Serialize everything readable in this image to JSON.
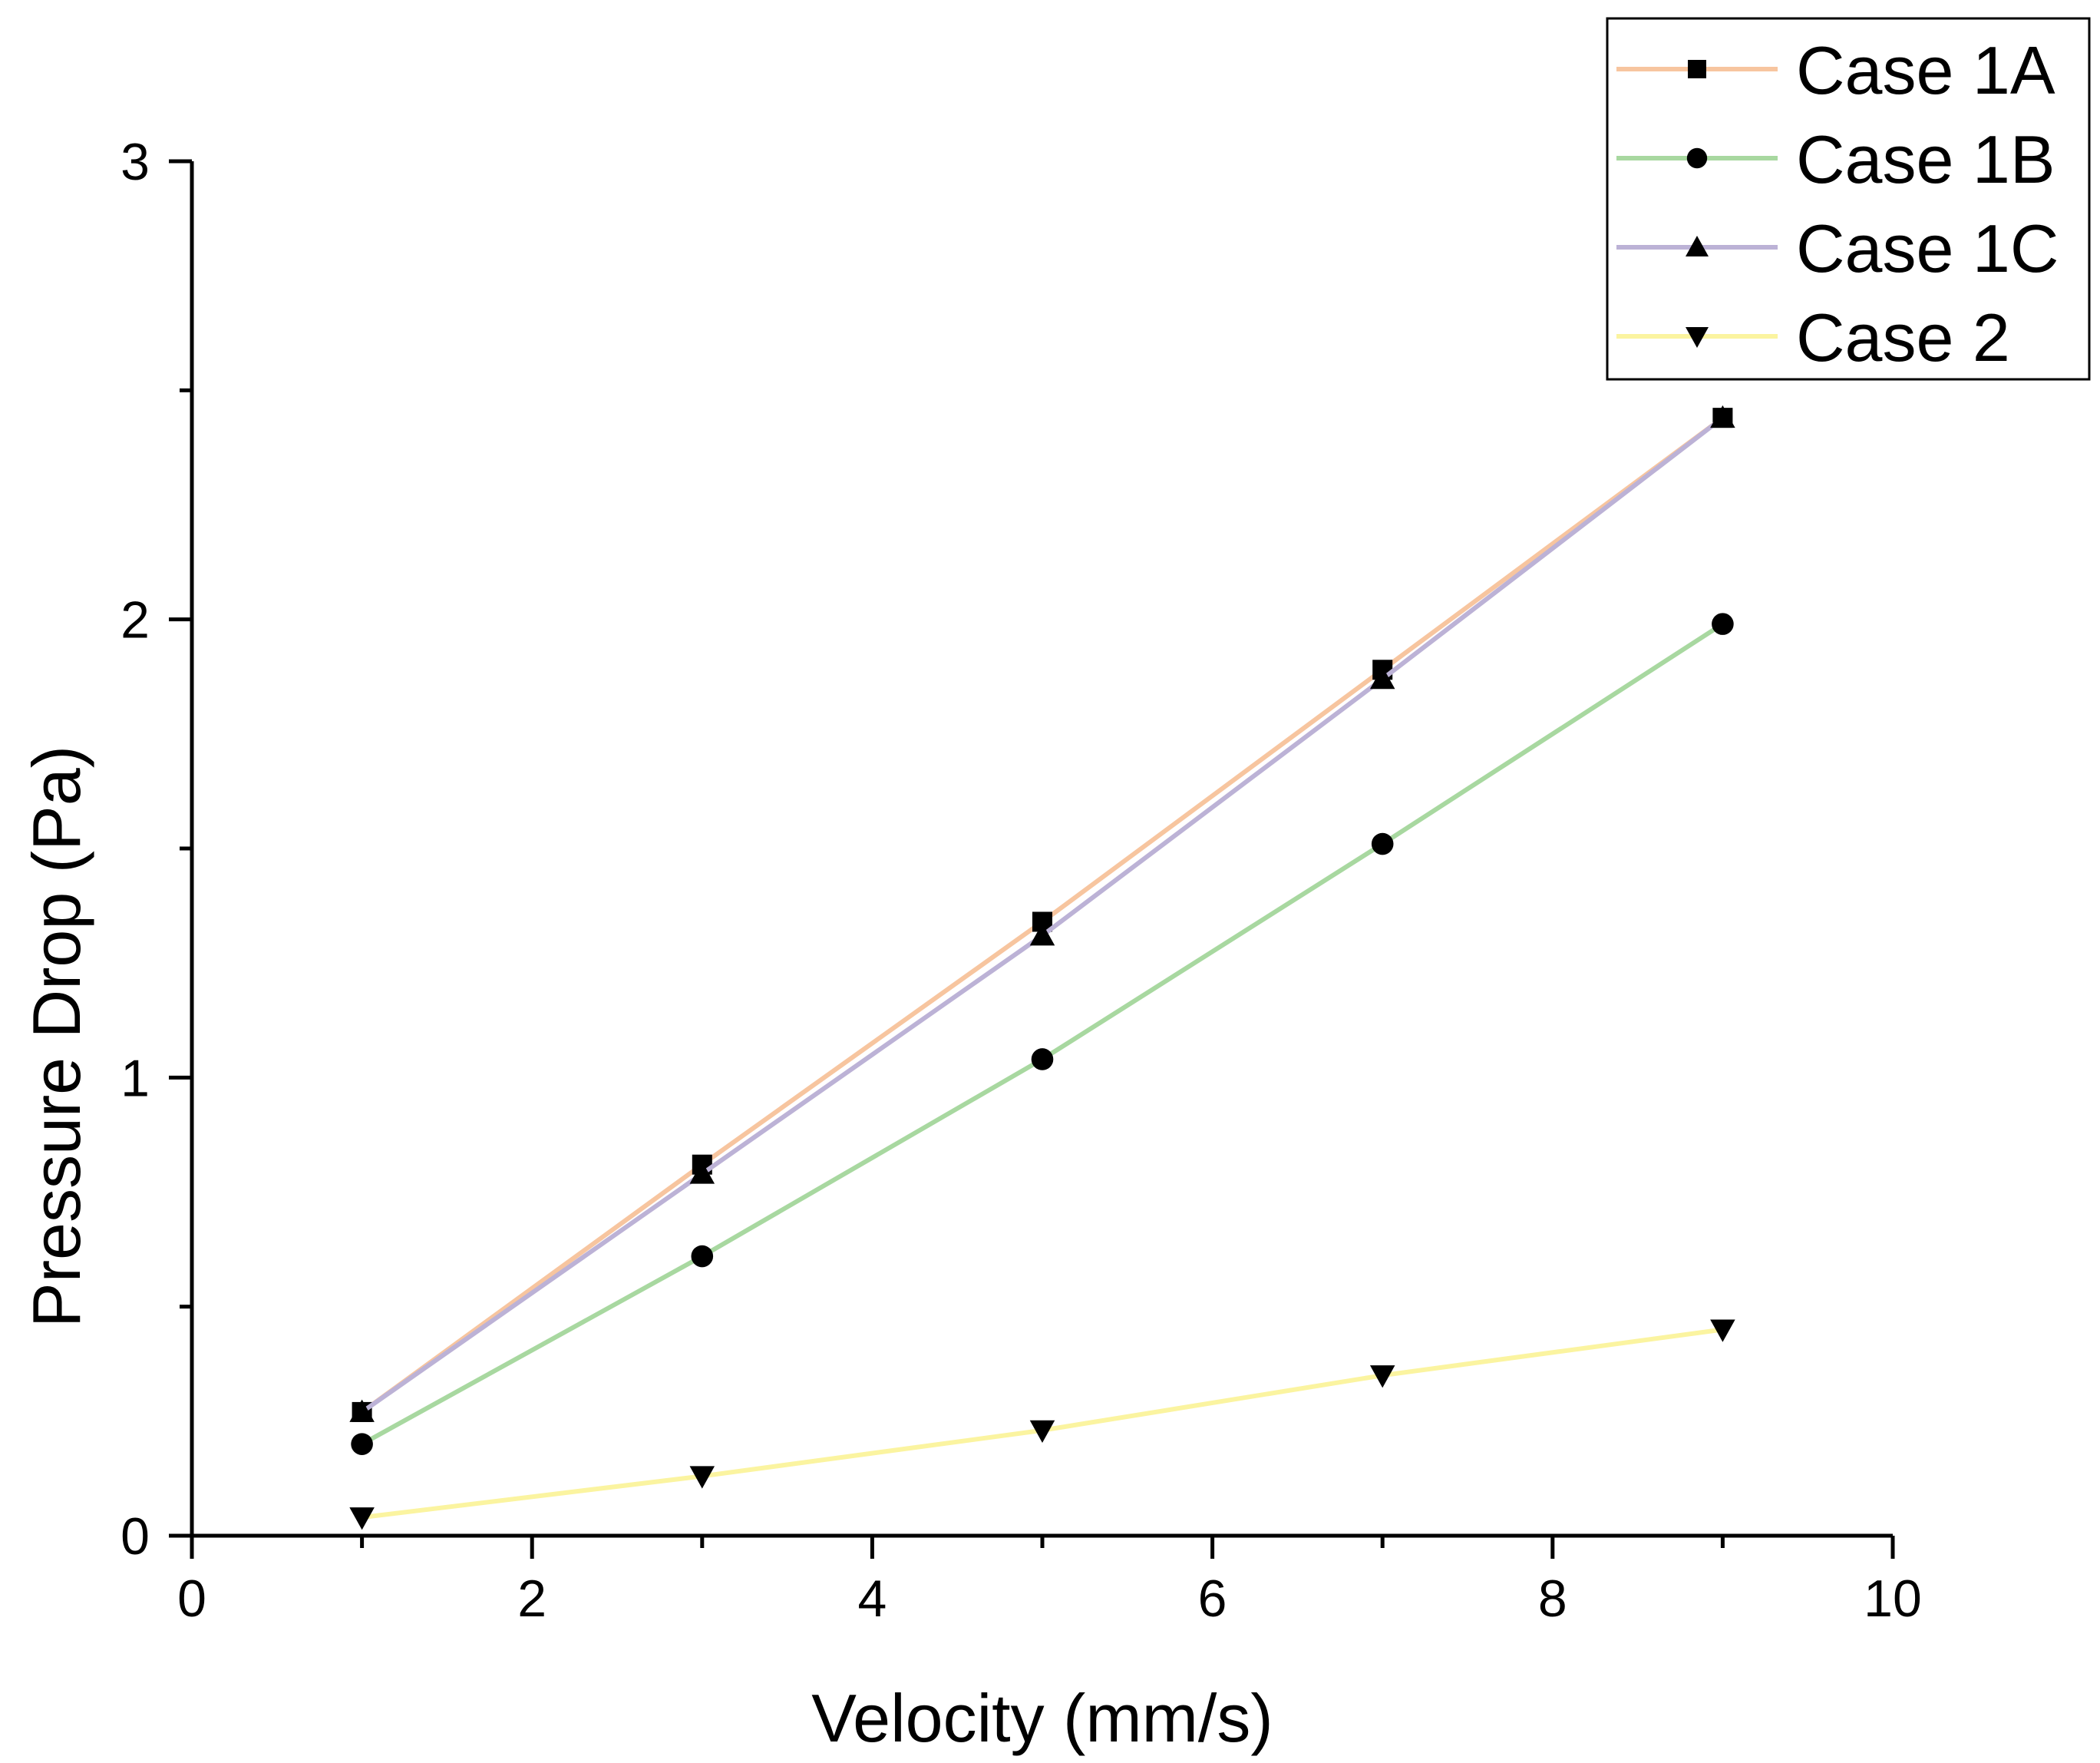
{
  "chart_data": {
    "type": "line",
    "title": "",
    "xlabel": "Velocity (mm/s)",
    "ylabel": "Pressure Drop (Pa)",
    "xlim": [
      0,
      10
    ],
    "ylim": [
      0,
      3
    ],
    "x_ticks": [
      "0",
      "2",
      "4",
      "6",
      "8",
      "10"
    ],
    "y_ticks": [
      "0",
      "1",
      "2",
      "3"
    ],
    "grid": false,
    "legend_position": "top-right",
    "x": [
      1,
      3,
      5,
      7,
      9
    ],
    "series": [
      {
        "name": "Case 1A",
        "color": "#f7c59f",
        "marker": "square",
        "values": [
          0.27,
          0.81,
          1.34,
          1.89,
          2.44
        ]
      },
      {
        "name": "Case 1B",
        "color": "#a8d8a0",
        "marker": "circle",
        "values": [
          0.2,
          0.61,
          1.04,
          1.51,
          1.99
        ]
      },
      {
        "name": "Case 1C",
        "color": "#bcb2d6",
        "marker": "triangle-up",
        "values": [
          0.27,
          0.79,
          1.31,
          1.87,
          2.44
        ]
      },
      {
        "name": "Case 2",
        "color": "#fbf4a0",
        "marker": "triangle-down",
        "values": [
          0.04,
          0.13,
          0.23,
          0.35,
          0.45
        ]
      }
    ]
  }
}
